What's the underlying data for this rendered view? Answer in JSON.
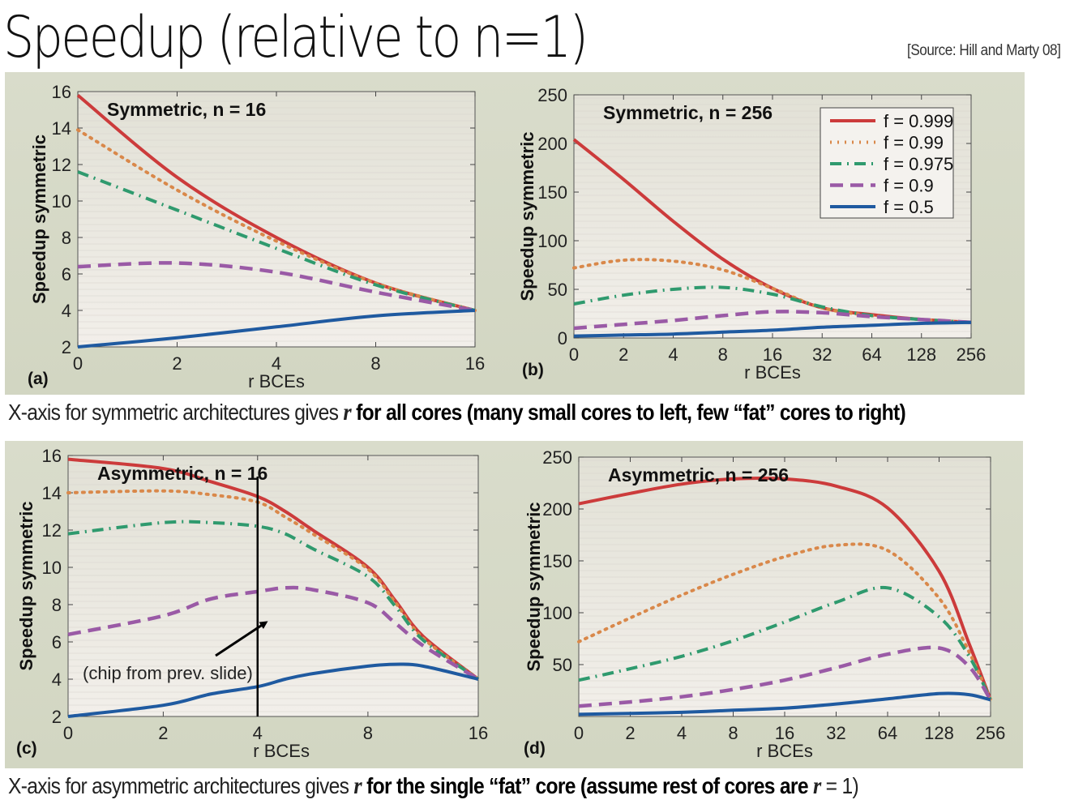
{
  "slide": {
    "title": "Speedup (relative to n=1)",
    "source": "[Source: Hill and Marty 08]",
    "caption_top": {
      "normal": "X-axis for symmetric architectures gives ",
      "var": "r",
      "bold": " for all cores (many small cores to left, few “fat” cores to right)"
    },
    "caption_bottom": {
      "normal": "X-axis for asymmetric architectures gives ",
      "var": "r",
      "bold": " for the single “fat” core (assume rest of cores are ",
      "var2": "r",
      "tail": " = 1)"
    },
    "annotation": "(chip from prev. slide)"
  },
  "colors": {
    "f_0.999": "#cc3b3b",
    "f_0.99": "#d9884a",
    "f_0.975": "#2f9a6e",
    "f_0.9": "#9a5aa6",
    "f_0.5": "#1f5aa0",
    "panel_bg": "#d6d9c6"
  },
  "legend": [
    "f = 0.999",
    "f = 0.99",
    "f = 0.975",
    "f = 0.9",
    "f = 0.5"
  ],
  "chart_data": [
    {
      "type": "line",
      "title": "Symmetric, n = 16",
      "panel_label": "(a)",
      "xlabel": "r BCEs",
      "ylabel": "Speedup symmetric",
      "x": [
        1,
        2,
        4,
        8,
        16
      ],
      "xticks": [
        "0",
        "2",
        "4",
        "8",
        "16"
      ],
      "yticks": [
        "2",
        "4",
        "6",
        "8",
        "10",
        "12",
        "14",
        "16"
      ],
      "ylim": [
        2,
        16
      ],
      "series": [
        {
          "name": "f = 0.999",
          "values": [
            15.8,
            11.3,
            8.0,
            5.5,
            4.0
          ]
        },
        {
          "name": "f = 0.99",
          "values": [
            13.9,
            10.6,
            7.8,
            5.5,
            4.0
          ]
        },
        {
          "name": "f = 0.975",
          "values": [
            11.6,
            9.5,
            7.4,
            5.4,
            4.0
          ]
        },
        {
          "name": "f = 0.9",
          "values": [
            6.4,
            6.6,
            6.1,
            5.0,
            4.0
          ]
        },
        {
          "name": "f = 0.5",
          "values": [
            2.0,
            2.5,
            3.1,
            3.7,
            4.0
          ]
        }
      ]
    },
    {
      "type": "line",
      "title": "Symmetric, n = 256",
      "panel_label": "(b)",
      "xlabel": "r BCEs",
      "ylabel": "Speedup symmetric",
      "x": [
        1,
        2,
        4,
        8,
        16,
        32,
        64,
        128,
        256
      ],
      "xticks": [
        "0",
        "2",
        "4",
        "8",
        "16",
        "32",
        "64",
        "128",
        "256"
      ],
      "yticks": [
        "0",
        "50",
        "100",
        "150",
        "200",
        "250"
      ],
      "ylim": [
        0,
        250
      ],
      "legend_position": "top-right",
      "series": [
        {
          "name": "f = 0.999",
          "values": [
            204,
            163,
            120,
            81,
            51,
            31,
            24,
            19,
            16
          ]
        },
        {
          "name": "f = 0.99",
          "values": [
            72,
            80,
            79,
            70,
            51,
            31,
            23,
            19,
            16
          ]
        },
        {
          "name": "f = 0.975",
          "values": [
            35,
            44,
            50,
            52,
            45,
            32,
            23,
            19,
            16
          ]
        },
        {
          "name": "f = 0.9",
          "values": [
            10,
            14,
            18,
            23,
            27,
            26,
            22,
            19,
            16
          ]
        },
        {
          "name": "f = 0.5",
          "values": [
            2,
            3,
            4,
            6,
            8,
            11,
            13,
            15,
            16
          ]
        }
      ]
    },
    {
      "type": "line",
      "title": "Asymmetric, n = 16",
      "panel_label": "(c)",
      "xlabel": "r BCEs",
      "ylabel": "Speedup symmetric",
      "x": [
        1,
        2,
        3,
        4,
        5,
        6,
        8,
        10,
        12,
        16
      ],
      "xticks": [
        "0",
        "2",
        "4",
        "8",
        "16"
      ],
      "yticks": [
        "2",
        "4",
        "6",
        "8",
        "10",
        "12",
        "14",
        "16"
      ],
      "ylim": [
        2,
        16
      ],
      "series": [
        {
          "name": "f = 0.999",
          "values": [
            15.8,
            15.3,
            14.6,
            13.8,
            13.0,
            12.0,
            10.0,
            8.2,
            6.3,
            4.0
          ]
        },
        {
          "name": "f = 0.99",
          "values": [
            14.0,
            14.1,
            13.9,
            13.5,
            12.7,
            11.8,
            9.9,
            8.1,
            6.2,
            4.0
          ]
        },
        {
          "name": "f = 0.975",
          "values": [
            11.8,
            12.4,
            12.4,
            12.2,
            11.8,
            11.0,
            9.5,
            7.9,
            6.1,
            4.0
          ]
        },
        {
          "name": "f = 0.9",
          "values": [
            6.4,
            7.4,
            8.3,
            8.7,
            8.9,
            8.8,
            8.1,
            7.0,
            5.8,
            4.0
          ]
        },
        {
          "name": "f = 0.5",
          "values": [
            2.0,
            2.6,
            3.2,
            3.6,
            4.0,
            4.3,
            4.7,
            4.8,
            4.7,
            4.0
          ]
        }
      ]
    },
    {
      "type": "line",
      "title": "Asymmetric, n = 256",
      "panel_label": "(d)",
      "xlabel": "r BCEs",
      "ylabel": "Speedup symmetric",
      "x": [
        1,
        2,
        4,
        8,
        16,
        32,
        64,
        128,
        192,
        256
      ],
      "xticks": [
        "0",
        "2",
        "4",
        "8",
        "16",
        "32",
        "64",
        "128",
        "256"
      ],
      "yticks": [
        "50",
        "100",
        "150",
        "200",
        "250"
      ],
      "ylim": [
        0,
        250
      ],
      "series": [
        {
          "name": "f = 0.999",
          "values": [
            205,
            215,
            224,
            229,
            229,
            222,
            201,
            140,
            70,
            16
          ]
        },
        {
          "name": "f = 0.99",
          "values": [
            72,
            95,
            117,
            137,
            154,
            165,
            160,
            114,
            62,
            16
          ]
        },
        {
          "name": "f = 0.975",
          "values": [
            35,
            46,
            58,
            73,
            91,
            110,
            124,
            96,
            58,
            16
          ]
        },
        {
          "name": "f = 0.9",
          "values": [
            10,
            14,
            19,
            26,
            35,
            47,
            60,
            66,
            48,
            16
          ]
        },
        {
          "name": "f = 0.5",
          "values": [
            2,
            3,
            4,
            6,
            8,
            12,
            17,
            22,
            21,
            16
          ]
        }
      ]
    }
  ]
}
